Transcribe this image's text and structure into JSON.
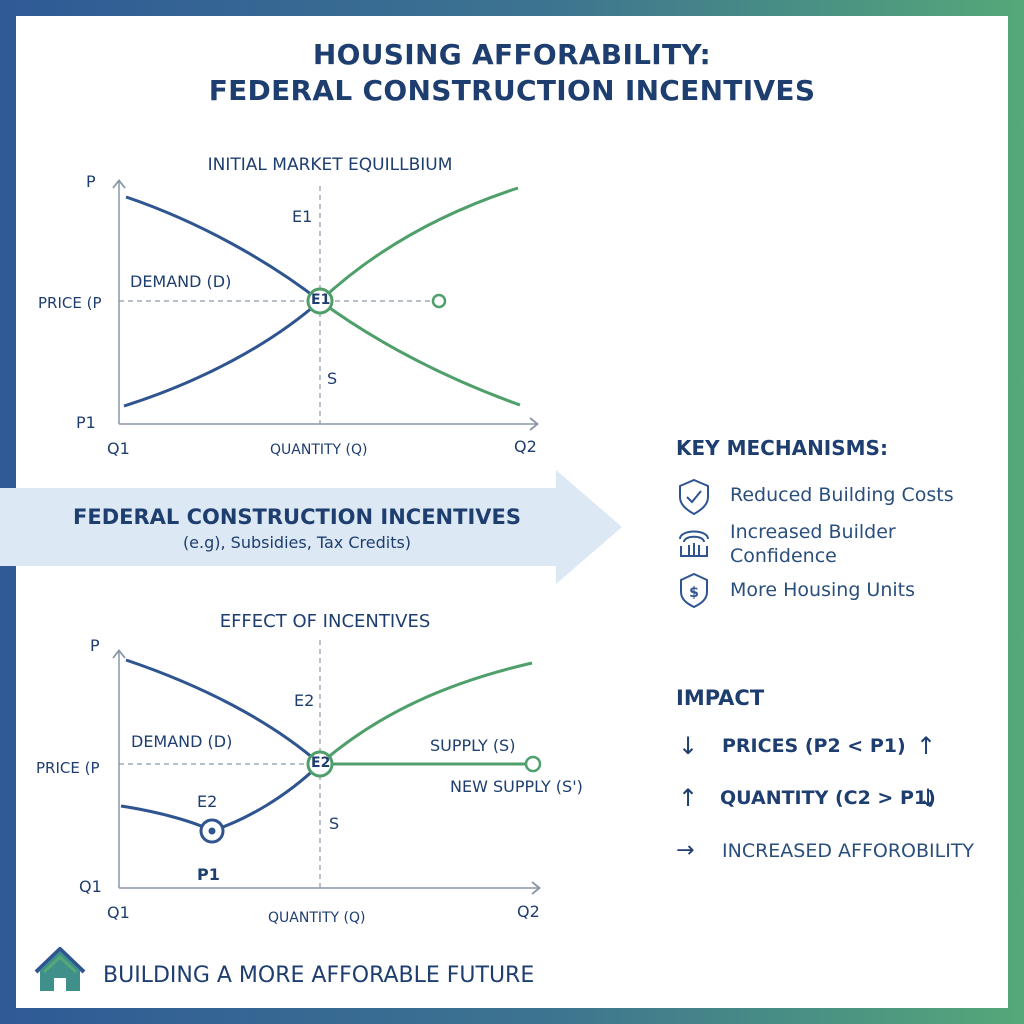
{
  "title": {
    "line1": "HOUSING AFFORABILITY:",
    "line2": "FEDERAL CONSTRUCTION INCENTIVES"
  },
  "colors": {
    "demand": "#2f5590",
    "supply": "#4f9f6a",
    "navy": "#1e3e70",
    "arrow_band": "#dce8f4"
  },
  "top_chart": {
    "title": "INITIAL MARKET EQUILLBIUM",
    "p_label": "P",
    "price_label": "PRICE (P",
    "p1_label": "P1",
    "q1_label": "Q1",
    "q2_label": "Q2",
    "x_label": "QUANTITY (Q)",
    "e1_above": "E1",
    "e1_point": "E1",
    "demand_label": "DEMAND (D)",
    "s_label": "S"
  },
  "arrow": {
    "title": "FEDERAL CONSTRUCTION INCENTIVES",
    "subtitle": "(e.g), Subsidies, Tax Credits)"
  },
  "bottom_chart": {
    "title": "EFFECT OF INCENTIVES",
    "p_label": "P",
    "price_label": "PRICE (P",
    "q1_y_label": "Q1",
    "q1_label": "Q1",
    "q2_label": "Q2",
    "x_label": "QUANTITY (Q)",
    "e2_above": "E2",
    "e2_point": "E2",
    "e2_low": "E2",
    "p1_label": "P1",
    "demand_label": "DEMAND (D)",
    "supply_label": "SUPPLY (S)",
    "new_supply_label": "NEW SUPPLY (S')",
    "s_label": "S"
  },
  "key_mechanisms": {
    "heading": "KEY MECHANISMS:",
    "items": [
      {
        "icon": "shield-check-icon",
        "label": "Reduced Building Costs"
      },
      {
        "icon": "handshake-icon",
        "label": "Increased Builder Confidence"
      },
      {
        "icon": "dollar-shield-icon",
        "label": "More Housing Units"
      }
    ]
  },
  "impact": {
    "heading": "IMPACT",
    "prices": "PRICES (P2 < P1)",
    "quantity": "QUANTITY (C2 > P1)",
    "affordability": "INCREASED AFFOROBILITY",
    "down_arrow": "↓",
    "up_arrow": "↑",
    "right_arrow": "→"
  },
  "footer": {
    "text": "BUILDING A MORE AFFORABLE FUTURE"
  }
}
